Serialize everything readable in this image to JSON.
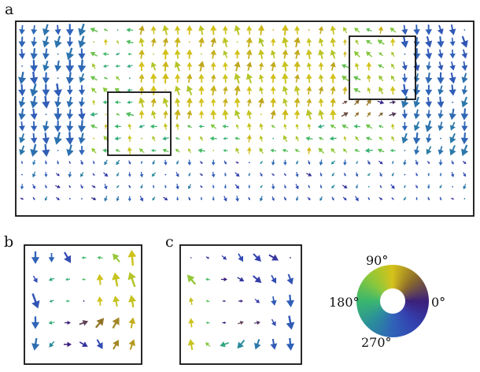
{
  "panels": [
    {
      "id": "a",
      "label": "a"
    },
    {
      "id": "b",
      "label": "b"
    },
    {
      "id": "c",
      "label": "c"
    }
  ],
  "color_wheel": {
    "labels": {
      "deg90": "90°",
      "deg180": "180°",
      "deg270": "270°",
      "deg0": "0°"
    },
    "stops": [
      {
        "angle": 0,
        "color": "#3b1f7a"
      },
      {
        "angle": 45,
        "color": "#8a6a2a"
      },
      {
        "angle": 90,
        "color": "#d6c21a"
      },
      {
        "angle": 135,
        "color": "#8cc83a"
      },
      {
        "angle": 180,
        "color": "#39b66e"
      },
      {
        "angle": 225,
        "color": "#2a8f9a"
      },
      {
        "angle": 270,
        "color": "#2f63b8"
      },
      {
        "angle": 315,
        "color": "#3340b0"
      }
    ]
  }
}
